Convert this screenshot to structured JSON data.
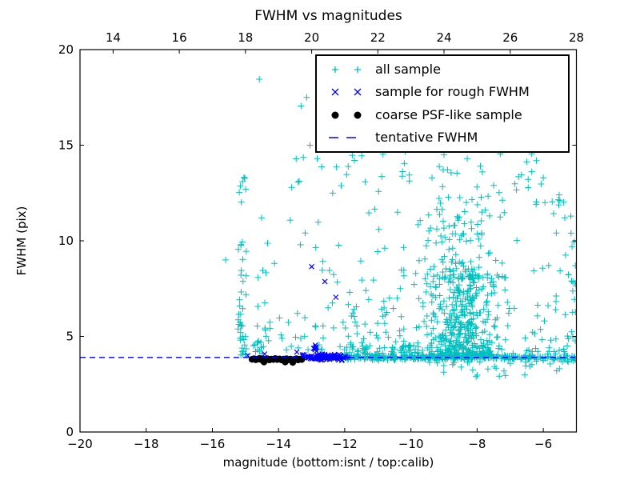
{
  "figure": {
    "title": "FWHM vs magnitudes"
  },
  "axes": {
    "xlabel": "magnitude (bottom:isnt / top:calib)",
    "ylabel": "FWHM (pix)",
    "x_bottom": {
      "lim": [
        -20,
        -5
      ],
      "ticks": [
        -20,
        -18,
        -16,
        -14,
        -12,
        -10,
        -8,
        -6
      ],
      "tick_labels": [
        "−20",
        "−18",
        "−16",
        "−14",
        "−12",
        "−10",
        "−8",
        "−6"
      ]
    },
    "x_top": {
      "lim": [
        13,
        28
      ],
      "ticks": [
        14,
        16,
        18,
        20,
        22,
        24,
        26,
        28
      ],
      "tick_labels": [
        "14",
        "16",
        "18",
        "20",
        "22",
        "24",
        "26",
        "28"
      ]
    },
    "y_left": {
      "lim": [
        0,
        20
      ],
      "ticks": [
        0,
        5,
        10,
        15,
        20
      ],
      "tick_labels": [
        "0",
        "5",
        "10",
        "15",
        "20"
      ]
    }
  },
  "colors": {
    "all_sample": "#00bfbf",
    "rough_sample": "#0000ff",
    "coarse_sample": "#000000",
    "tentative_line": "#0000ff",
    "frame": "#000000",
    "background": "#ffffff"
  },
  "legend": {
    "items": [
      {
        "label": "all sample",
        "marker": "plus"
      },
      {
        "label": "sample for rough FWHM",
        "marker": "x"
      },
      {
        "label": "coarse PSF-like sample",
        "marker": "dot"
      },
      {
        "label": "tentative FWHM",
        "marker": "dashed-line"
      }
    ]
  },
  "chart_data": {
    "type": "scatter",
    "title": "FWHM vs magnitudes",
    "xlabel": "magnitude (bottom:isnt / top:calib)",
    "ylabel": "FWHM (pix)",
    "xlim": [
      -20,
      -5
    ],
    "ylim": [
      0,
      20
    ],
    "x_top_lim": [
      13,
      28
    ],
    "grid": false,
    "legend_position": "upper right",
    "tentative_fwhm": 3.9,
    "series": [
      {
        "name": "all sample",
        "marker": "plus",
        "color": "#00bfbf",
        "points": [
          [
            -14.58,
            18.45
          ],
          [
            -13.32,
            17.05
          ],
          [
            -13.15,
            17.5
          ],
          [
            -13.05,
            15.0
          ],
          [
            -11.1,
            15.3
          ],
          [
            -15.6,
            9.0
          ],
          [
            -5.13,
            9.7
          ],
          [
            -5.35,
            11.2
          ],
          [
            -6.0,
            13.3
          ],
          [
            -5.5,
            12.1
          ],
          [
            -6.75,
            13.35
          ],
          [
            -7.5,
            12.9
          ],
          [
            -5.95,
            12.0
          ],
          [
            -9.0,
            14.5
          ],
          [
            -8.3,
            14.3
          ],
          [
            -7.9,
            13.9
          ],
          [
            -6.35,
            14.55
          ],
          [
            -10.2,
            14.05
          ]
        ],
        "clusters": [
          {
            "name": "line-band",
            "n": 330,
            "x": {
              "t": "u",
              "a": -12.18,
              "b": -6.3
            },
            "y": {
              "t": "n",
              "mu": 3.9,
              "s": 0.07,
              "min": 3.74,
              "max": 4.1
            }
          },
          {
            "name": "line-band-right",
            "n": 42,
            "x": {
              "t": "u",
              "a": -6.3,
              "b": -5.02
            },
            "y": {
              "t": "n",
              "mu": 3.88,
              "s": 0.1,
              "min": 3.6,
              "max": 4.15
            }
          },
          {
            "name": "blob-core",
            "n": 430,
            "x": {
              "t": "n",
              "mu": -8.45,
              "s": 0.62,
              "min": -10.05,
              "max": -6.85
            },
            "y": {
              "t": "p",
              "base": 4.0,
              "span": 4.3,
              "pow": 1.8
            }
          },
          {
            "name": "blob-upper",
            "n": 120,
            "x": {
              "t": "n",
              "mu": -8.55,
              "s": 0.75,
              "min": -10.3,
              "max": -6.6
            },
            "y": {
              "t": "p",
              "base": 8.0,
              "span": 4.3,
              "pow": 1.5
            }
          },
          {
            "name": "upper-scatter",
            "n": 50,
            "x": {
              "t": "u",
              "a": -13.8,
              "b": -6.2
            },
            "y": {
              "t": "u",
              "a": 12.3,
              "b": 15.0
            }
          },
          {
            "name": "column",
            "n": 40,
            "x": {
              "t": "n",
              "mu": -15.1,
              "s": 0.07,
              "min": -15.3,
              "max": -14.92
            },
            "y": {
              "t": "p",
              "base": 3.95,
              "span": 6.3,
              "pow": 1.5
            }
          },
          {
            "name": "column-top",
            "n": 7,
            "x": {
              "t": "n",
              "mu": -15.1,
              "s": 0.08,
              "min": -15.3,
              "max": -14.92
            },
            "y": {
              "t": "u",
              "a": 11.5,
              "b": 13.5
            }
          },
          {
            "name": "mid-scatter",
            "n": 85,
            "x": {
              "t": "u",
              "a": -14.75,
              "b": -10.05
            },
            "y": {
              "t": "p",
              "base": 4.3,
              "span": 4.6,
              "pow": 1.9
            }
          },
          {
            "name": "mid-upper",
            "n": 16,
            "x": {
              "t": "u",
              "a": -14.6,
              "b": -10.3
            },
            "y": {
              "t": "u",
              "a": 8.9,
              "b": 11.8
            }
          },
          {
            "name": "left-base",
            "n": 12,
            "x": {
              "t": "u",
              "a": -14.78,
              "b": -14.35
            },
            "y": {
              "t": "u",
              "a": 4.05,
              "b": 4.8
            }
          },
          {
            "name": "right-sparse",
            "n": 52,
            "x": {
              "t": "u",
              "a": -6.55,
              "b": -5.0
            },
            "y": {
              "t": "p",
              "base": 4.2,
              "span": 9.6,
              "pow": 2.2
            }
          },
          {
            "name": "right-edge-col",
            "n": 10,
            "x": {
              "t": "u",
              "a": -5.28,
              "b": -5.0
            },
            "y": {
              "t": "u",
              "a": 4.7,
              "b": 10.3
            }
          },
          {
            "name": "below-line",
            "n": 30,
            "x": {
              "t": "u",
              "a": -9.7,
              "b": -5.05
            },
            "y": {
              "t": "p",
              "base": 3.68,
              "span": -0.85,
              "pow": 1.8
            }
          },
          {
            "name": "gap-fill",
            "n": 26,
            "x": {
              "t": "u",
              "a": -11.95,
              "b": -9.95
            },
            "y": {
              "t": "p",
              "base": 4.05,
              "span": 3.1,
              "pow": 1.7
            }
          },
          {
            "name": "band-upper-fuzz",
            "n": 30,
            "x": {
              "t": "u",
              "a": -12.1,
              "b": -9.8
            },
            "y": {
              "t": "u",
              "a": 4.08,
              "b": 4.55
            }
          }
        ]
      },
      {
        "name": "sample for rough FWHM",
        "marker": "x",
        "color": "#0000ff",
        "points": [
          [
            -13.0,
            8.65
          ],
          [
            -12.6,
            7.87
          ],
          [
            -12.27,
            7.05
          ],
          [
            -14.93,
            4.0
          ],
          [
            -14.42,
            4.08
          ],
          [
            -13.45,
            4.18
          ]
        ],
        "clusters": [
          {
            "name": "x-band",
            "n": 95,
            "x": {
              "t": "n",
              "mu": -12.6,
              "s": 0.38,
              "min": -13.32,
              "max": -11.9
            },
            "y": {
              "t": "n",
              "mu": 3.93,
              "s": 0.09,
              "min": 3.7,
              "max": 4.2
            }
          },
          {
            "name": "x-spike",
            "n": 7,
            "x": {
              "t": "n",
              "mu": -12.93,
              "s": 0.04,
              "min": -13.02,
              "max": -12.84
            },
            "y": {
              "t": "u",
              "a": 4.2,
              "b": 4.55
            }
          }
        ]
      },
      {
        "name": "coarse PSF-like sample",
        "marker": "dot",
        "color": "#000000",
        "points": [
          [
            -14.8,
            3.8
          ],
          [
            -14.74,
            3.83
          ],
          [
            -14.69,
            3.78
          ],
          [
            -14.63,
            3.81
          ],
          [
            -14.57,
            3.85
          ],
          [
            -14.52,
            3.78
          ],
          [
            -14.46,
            3.82
          ],
          [
            -14.44,
            3.66
          ],
          [
            -14.4,
            3.8
          ],
          [
            -14.34,
            3.83
          ],
          [
            -14.28,
            3.77
          ],
          [
            -14.22,
            3.81
          ],
          [
            -14.16,
            3.79
          ],
          [
            -14.1,
            3.84
          ],
          [
            -14.04,
            3.79
          ],
          [
            -13.97,
            3.82
          ],
          [
            -13.91,
            3.77
          ],
          [
            -13.85,
            3.81
          ],
          [
            -13.8,
            3.66
          ],
          [
            -13.76,
            3.83
          ],
          [
            -13.7,
            3.78
          ],
          [
            -13.64,
            3.81
          ],
          [
            -13.57,
            3.64
          ],
          [
            -13.52,
            3.8
          ],
          [
            -13.46,
            3.83
          ],
          [
            -13.41,
            3.77
          ],
          [
            -13.35,
            3.81
          ],
          [
            -13.3,
            3.79
          ]
        ]
      },
      {
        "name": "tentative FWHM",
        "type": "hline",
        "linestyle": "dashed",
        "color": "#0000ff",
        "y": 3.9
      }
    ]
  }
}
